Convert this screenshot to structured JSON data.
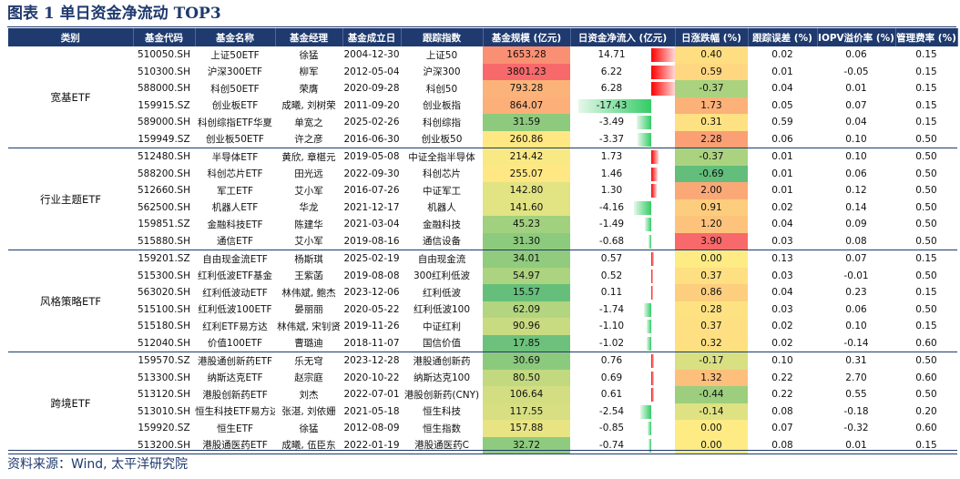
{
  "title": "图表 1 单日资金净流动 TOP3",
  "source": "资料来源：Wind, 太平洋研究院",
  "headers": [
    "类别",
    "基金代码",
    "基金名称",
    "基金经理",
    "基金成立日",
    "跟踪指数",
    "基金规模 (亿元)",
    "日资金净流入 (亿元)",
    "日涨跌幅 (%)",
    "跟踪误差 (%)",
    "IOPV溢价率 (%)",
    "管理费率 (%)"
  ],
  "colors": {
    "header_bg": "#1f3a6e",
    "inflow": "#ff0000",
    "outflow": "#33cc66",
    "scale_stops": [
      "#63be7b",
      "#ffeb84",
      "#f8696b"
    ]
  },
  "groups": [
    {
      "category": "宽基ETF",
      "rows": [
        {
          "code": "510050.SH",
          "name": "上证50ETF",
          "manager": "徐猛",
          "inception": "2004-12-30",
          "index": "上证50",
          "scale": "1653.28",
          "flow": "14.71",
          "ret": "0.40",
          "te": "0.02",
          "iopv": "0.06",
          "fee": "0.15"
        },
        {
          "code": "510300.SH",
          "name": "沪深300ETF",
          "manager": "柳军",
          "inception": "2012-05-04",
          "index": "沪深300",
          "scale": "3801.23",
          "flow": "6.22",
          "ret": "0.59",
          "te": "0.01",
          "iopv": "-0.05",
          "fee": "0.15"
        },
        {
          "code": "588000.SH",
          "name": "科创50ETF",
          "manager": "荣膺",
          "inception": "2020-09-28",
          "index": "科创50",
          "scale": "793.28",
          "flow": "6.28",
          "ret": "-0.37",
          "te": "0.04",
          "iopv": "0.01",
          "fee": "0.15"
        },
        {
          "code": "159915.SZ",
          "name": "创业板ETF",
          "manager": "成曦, 刘树荣",
          "inception": "2011-09-20",
          "index": "创业板指",
          "scale": "864.07",
          "flow": "-17.43",
          "ret": "1.73",
          "te": "0.05",
          "iopv": "0.07",
          "fee": "0.15"
        },
        {
          "code": "589000.SH",
          "name": "科创综指ETF华夏",
          "manager": "单宽之",
          "inception": "2025-02-26",
          "index": "科创综指",
          "scale": "31.59",
          "flow": "-3.49",
          "ret": "0.31",
          "te": "0.59",
          "iopv": "0.04",
          "fee": "0.15"
        },
        {
          "code": "159949.SZ",
          "name": "创业板50ETF",
          "manager": "许之彦",
          "inception": "2016-06-30",
          "index": "创业板50",
          "scale": "260.86",
          "flow": "-3.37",
          "ret": "2.28",
          "te": "0.06",
          "iopv": "0.10",
          "fee": "0.50"
        }
      ]
    },
    {
      "category": "行业主题ETF",
      "rows": [
        {
          "code": "512480.SH",
          "name": "半导体ETF",
          "manager": "黄欣, 章椹元",
          "inception": "2019-05-08",
          "index": "中证全指半导体",
          "scale": "214.42",
          "flow": "1.73",
          "ret": "-0.37",
          "te": "0.01",
          "iopv": "0.10",
          "fee": "0.50"
        },
        {
          "code": "588200.SH",
          "name": "科创芯片ETF",
          "manager": "田光远",
          "inception": "2022-09-30",
          "index": "科创芯片",
          "scale": "255.07",
          "flow": "1.46",
          "ret": "-0.69",
          "te": "0.01",
          "iopv": "0.06",
          "fee": "0.50"
        },
        {
          "code": "512660.SH",
          "name": "军工ETF",
          "manager": "艾小军",
          "inception": "2016-07-26",
          "index": "中证军工",
          "scale": "142.80",
          "flow": "1.30",
          "ret": "2.00",
          "te": "0.01",
          "iopv": "0.12",
          "fee": "0.50"
        },
        {
          "code": "562500.SH",
          "name": "机器人ETF",
          "manager": "华龙",
          "inception": "2021-12-17",
          "index": "机器人",
          "scale": "141.60",
          "flow": "-4.16",
          "ret": "0.91",
          "te": "0.02",
          "iopv": "0.14",
          "fee": "0.50"
        },
        {
          "code": "159851.SZ",
          "name": "金融科技ETF",
          "manager": "陈建华",
          "inception": "2021-03-04",
          "index": "金融科技",
          "scale": "45.23",
          "flow": "-1.49",
          "ret": "1.20",
          "te": "0.04",
          "iopv": "0.09",
          "fee": "0.50"
        },
        {
          "code": "515880.SH",
          "name": "通信ETF",
          "manager": "艾小军",
          "inception": "2019-08-16",
          "index": "通信设备",
          "scale": "31.30",
          "flow": "-0.68",
          "ret": "3.90",
          "te": "0.03",
          "iopv": "0.08",
          "fee": "0.50"
        }
      ]
    },
    {
      "category": "风格策略ETF",
      "rows": [
        {
          "code": "159201.SZ",
          "name": "自由现金流ETF",
          "manager": "杨斯琪",
          "inception": "2025-02-19",
          "index": "自由现金流",
          "scale": "34.01",
          "flow": "0.57",
          "ret": "0.00",
          "te": "0.13",
          "iopv": "0.07",
          "fee": "0.15"
        },
        {
          "code": "515300.SH",
          "name": "红利低波ETF基金",
          "manager": "王紫菡",
          "inception": "2019-08-08",
          "index": "300红利低波",
          "scale": "54.97",
          "flow": "0.52",
          "ret": "0.37",
          "te": "0.03",
          "iopv": "-0.01",
          "fee": "0.50"
        },
        {
          "code": "563020.SH",
          "name": "红利低波动ETF",
          "manager": "林伟斌, 鲍杰",
          "inception": "2023-12-06",
          "index": "红利低波",
          "scale": "15.57",
          "flow": "0.11",
          "ret": "0.86",
          "te": "0.04",
          "iopv": "0.23",
          "fee": "0.15"
        },
        {
          "code": "515100.SH",
          "name": "红利低波100ETF",
          "manager": "晏丽丽",
          "inception": "2020-05-22",
          "index": "红利低波100",
          "scale": "62.09",
          "flow": "-1.74",
          "ret": "0.28",
          "te": "0.03",
          "iopv": "0.06",
          "fee": "0.50"
        },
        {
          "code": "515180.SH",
          "name": "红利ETF易方达",
          "manager": "林伟斌, 宋钊贤",
          "inception": "2019-11-26",
          "index": "中证红利",
          "scale": "90.96",
          "flow": "-1.10",
          "ret": "0.37",
          "te": "0.02",
          "iopv": "0.10",
          "fee": "0.15"
        },
        {
          "code": "512040.SH",
          "name": "价值100ETF",
          "manager": "曹璐迪",
          "inception": "2018-11-07",
          "index": "国信价值",
          "scale": "17.85",
          "flow": "-1.02",
          "ret": "0.32",
          "te": "0.02",
          "iopv": "-0.14",
          "fee": "0.60"
        }
      ]
    },
    {
      "category": "跨境ETF",
      "rows": [
        {
          "code": "159570.SZ",
          "name": "港股通创新药ETF",
          "manager": "乐无穹",
          "inception": "2023-12-28",
          "index": "港股通创新药",
          "scale": "30.69",
          "flow": "0.76",
          "ret": "-0.17",
          "te": "0.10",
          "iopv": "0.31",
          "fee": "0.50"
        },
        {
          "code": "513300.SH",
          "name": "纳斯达克ETF",
          "manager": "赵宗庭",
          "inception": "2020-10-22",
          "index": "纳斯达克100",
          "scale": "80.50",
          "flow": "0.69",
          "ret": "1.32",
          "te": "0.22",
          "iopv": "2.70",
          "fee": "0.60"
        },
        {
          "code": "513120.SH",
          "name": "港股创新药ETF",
          "manager": "刘杰",
          "inception": "2022-07-01",
          "index": "港股创新药(CNY)",
          "scale": "106.64",
          "flow": "0.61",
          "ret": "-0.44",
          "te": "0.22",
          "iopv": "0.55",
          "fee": "0.50"
        },
        {
          "code": "513010.SH",
          "name": "恒生科技ETF易方达",
          "manager": "张湛, 刘依姗",
          "inception": "2021-05-18",
          "index": "恒生科技",
          "scale": "117.55",
          "flow": "-2.54",
          "ret": "-0.14",
          "te": "0.08",
          "iopv": "-0.18",
          "fee": "0.20"
        },
        {
          "code": "159920.SZ",
          "name": "恒生ETF",
          "manager": "徐猛",
          "inception": "2012-08-09",
          "index": "恒生指数",
          "scale": "157.88",
          "flow": "-0.85",
          "ret": "0.00",
          "te": "0.07",
          "iopv": "-0.32",
          "fee": "0.60"
        },
        {
          "code": "513200.SH",
          "name": "港股通医药ETF",
          "manager": "成曦, 伍臣东",
          "inception": "2022-01-19",
          "index": "港股通医药C",
          "scale": "32.72",
          "flow": "-0.74",
          "ret": "0.00",
          "te": "0.08",
          "iopv": "0.01",
          "fee": "0.15"
        }
      ]
    }
  ]
}
